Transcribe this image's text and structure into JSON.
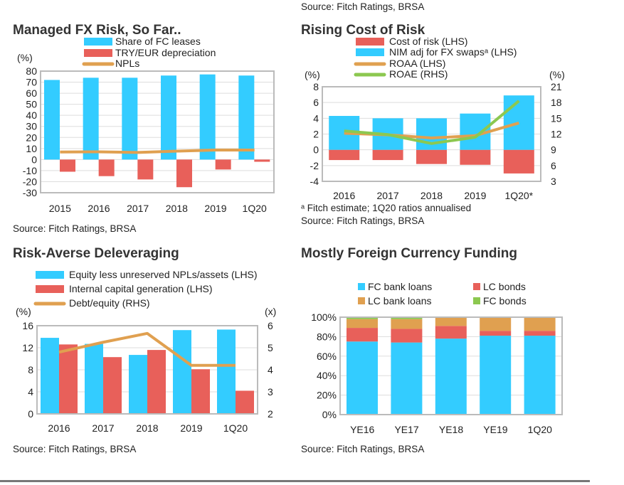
{
  "top_source": "Source: Fitch Ratings, BRSA",
  "colors": {
    "blue": "#33ccff",
    "red": "#e8605a",
    "orange": "#e0a050",
    "green": "#8cc850",
    "grid": "#dddddd",
    "frame": "#bbbbbb"
  },
  "chart_data": [
    {
      "type": "bar",
      "title": "Managed FX Risk,  So Far..",
      "ylabel": "(%)",
      "source": "Source: Fitch Ratings, BRSA",
      "categories": [
        "2015",
        "2016",
        "2017",
        "2018",
        "2019",
        "1Q20"
      ],
      "ylim": [
        -30,
        80
      ],
      "y_ticks": [
        "80",
        "70",
        "60",
        "50",
        "40",
        "30",
        "20",
        "10",
        "0",
        "-10",
        "-20",
        "-30"
      ],
      "grid": true,
      "legend_position": "top",
      "series": [
        {
          "name": "Share of FC leases",
          "kind": "bar",
          "color": "#33ccff",
          "values": [
            72,
            74,
            74,
            76,
            77,
            76
          ]
        },
        {
          "name": "TRY/EUR depreciation",
          "kind": "bar",
          "color": "#e8605a",
          "values": [
            -11,
            -15,
            -18,
            -25,
            -9,
            -2
          ]
        },
        {
          "name": "NPLs",
          "kind": "line",
          "color": "#e0a050",
          "values": [
            6.8,
            7.0,
            6.4,
            7.6,
            8.6,
            8.6
          ]
        }
      ]
    },
    {
      "type": "bar",
      "title": "Rising Cost of Risk",
      "ylabel": "(%)",
      "y2label": "(%)",
      "footnote": "ᵃ Fitch estimate; 1Q20 ratios annualised",
      "source": "Source: Fitch Ratings, BRSA",
      "categories": [
        "2016",
        "2017",
        "2018",
        "2019",
        "1Q20*"
      ],
      "ylim": [
        -4,
        8
      ],
      "y2lim": [
        3,
        21
      ],
      "y_ticks": [
        "8",
        "6",
        "4",
        "2",
        "0",
        "-2",
        "-4"
      ],
      "y2_ticks": [
        "21",
        "18",
        "15",
        "12",
        "9",
        "6",
        "3"
      ],
      "grid": true,
      "legend_position": "top",
      "series": [
        {
          "name": "Cost of risk (LHS)",
          "kind": "bar",
          "color": "#e8605a",
          "values": [
            -1.3,
            -1.3,
            -1.8,
            -1.9,
            -3.0
          ]
        },
        {
          "name": "NIM adj for FX swapsᵃ (LHS)",
          "kind": "bar",
          "color": "#33ccff",
          "values": [
            4.3,
            4.0,
            4.0,
            4.6,
            6.9
          ]
        },
        {
          "name": "ROAA (LHS)",
          "kind": "line",
          "color": "#e0a050",
          "values": [
            2.1,
            1.9,
            1.5,
            1.8,
            3.4
          ]
        },
        {
          "name": "ROAE (RHS)",
          "kind": "line",
          "axis": "right",
          "color": "#8cc850",
          "values": [
            12.6,
            11.9,
            10.2,
            11.4,
            18.3
          ]
        }
      ]
    },
    {
      "type": "bar",
      "title": "Risk-Averse Deleveraging",
      "ylabel": "(%)",
      "y2label": "(x)",
      "source": "Source: Fitch Ratings, BRSA",
      "categories": [
        "2016",
        "2017",
        "2018",
        "2019",
        "1Q20"
      ],
      "ylim": [
        0,
        16
      ],
      "y2lim": [
        2,
        6
      ],
      "y_ticks": [
        "16",
        "12",
        "8",
        "4",
        "0"
      ],
      "y2_ticks": [
        "6",
        "5",
        "4",
        "3",
        "2"
      ],
      "grid": true,
      "legend_position": "top",
      "series": [
        {
          "name": "Equity less unreserved NPLs/assets (LHS)",
          "kind": "bar",
          "color": "#33ccff",
          "values": [
            13.8,
            12.7,
            10.7,
            15.2,
            15.3
          ]
        },
        {
          "name": "Internal capital generation (LHS)",
          "kind": "bar",
          "color": "#e8605a",
          "values": [
            12.6,
            10.3,
            11.6,
            8.1,
            4.2
          ]
        },
        {
          "name": "Debt/equity (RHS)",
          "kind": "line",
          "axis": "right",
          "color": "#e0a050",
          "values": [
            4.8,
            5.25,
            5.65,
            4.2,
            4.2
          ]
        }
      ]
    },
    {
      "type": "bar",
      "stacked": true,
      "title": "Mostly Foreign Currency Funding",
      "source": "Source: Fitch Ratings, BRSA",
      "categories": [
        "YE16",
        "YE17",
        "YE18",
        "YE19",
        "1Q20"
      ],
      "ylim": [
        0,
        100
      ],
      "y_ticks": [
        "100%",
        "80%",
        "60%",
        "40%",
        "20%",
        "0%"
      ],
      "grid": true,
      "legend_position": "top",
      "series": [
        {
          "name": "FC bank loans",
          "kind": "bar",
          "color": "#33ccff",
          "values": [
            75,
            74,
            78,
            81,
            81
          ]
        },
        {
          "name": "LC bonds",
          "kind": "bar",
          "color": "#e8605a",
          "values": [
            14,
            14,
            13,
            5,
            5
          ]
        },
        {
          "name": "LC bank loans",
          "kind": "bar",
          "color": "#e0a050",
          "values": [
            9,
            10,
            9,
            14,
            14
          ]
        },
        {
          "name": "FC bonds",
          "kind": "bar",
          "color": "#8cc850",
          "values": [
            2,
            2,
            0,
            0,
            0
          ]
        }
      ]
    }
  ]
}
